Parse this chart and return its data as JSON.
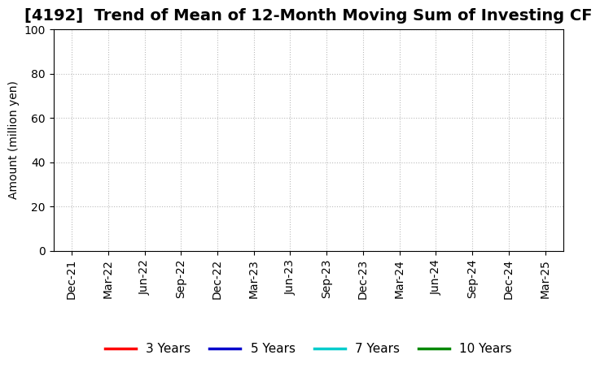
{
  "title": "[4192]  Trend of Mean of 12-Month Moving Sum of Investing CF",
  "ylabel": "Amount (million yen)",
  "ylim": [
    0,
    100
  ],
  "yticks": [
    0,
    20,
    40,
    60,
    80,
    100
  ],
  "background_color": "#ffffff",
  "plot_bg_color": "#ffffff",
  "grid_color": "#bbbbbb",
  "x_labels": [
    "Dec-21",
    "Mar-22",
    "Jun-22",
    "Sep-22",
    "Dec-22",
    "Mar-23",
    "Jun-23",
    "Sep-23",
    "Dec-23",
    "Mar-24",
    "Jun-24",
    "Sep-24",
    "Dec-24",
    "Mar-25"
  ],
  "legend_entries": [
    {
      "label": "3 Years",
      "color": "#ff0000"
    },
    {
      "label": "5 Years",
      "color": "#0000cc"
    },
    {
      "label": "7 Years",
      "color": "#00cccc"
    },
    {
      "label": "10 Years",
      "color": "#008800"
    }
  ],
  "title_fontsize": 14,
  "axis_label_fontsize": 10,
  "tick_fontsize": 10,
  "legend_fontsize": 11
}
